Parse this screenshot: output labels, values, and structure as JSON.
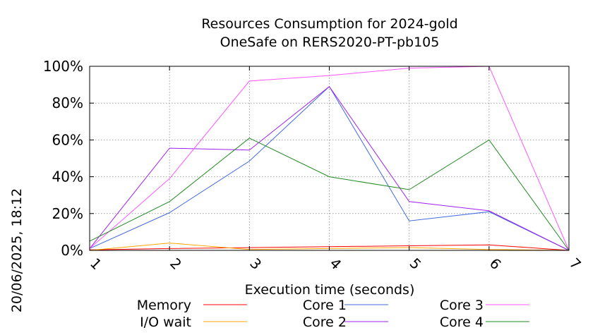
{
  "chart_data": {
    "type": "line",
    "title": [
      "Resources Consumption for 2024-gold",
      "OneSafe on RERS2020-PT-pb105"
    ],
    "xlabel": "Execution time (seconds)",
    "ylabel": "",
    "x": [
      1,
      2,
      3,
      4,
      5,
      6,
      7
    ],
    "xlim": [
      1,
      7
    ],
    "ylim": [
      0,
      100
    ],
    "x_ticks": [
      "1",
      "2",
      "3",
      "4",
      "5",
      "6",
      "7"
    ],
    "y_ticks": [
      {
        "value": 0,
        "label": "0%"
      },
      {
        "value": 20,
        "label": "20%"
      },
      {
        "value": 40,
        "label": "40%"
      },
      {
        "value": 60,
        "label": "60%"
      },
      {
        "value": 80,
        "label": "80%"
      },
      {
        "value": 100,
        "label": "100%"
      }
    ],
    "grid": true,
    "legend_position": "bottom",
    "timestamp": "20/06/2025, 18:12",
    "series": [
      {
        "name": "Memory",
        "color": "#ff0000",
        "values": [
          0.3,
          1,
          1.5,
          2,
          2.5,
          3,
          0
        ]
      },
      {
        "name": "I/O wait",
        "color": "#ffa500",
        "values": [
          0,
          4,
          0.5,
          1,
          1.5,
          0.5,
          0
        ]
      },
      {
        "name": "Core 1",
        "color": "#4169e1",
        "values": [
          1,
          20.5,
          48.5,
          89,
          16,
          21,
          0
        ]
      },
      {
        "name": "Core 2",
        "color": "#a020f0",
        "values": [
          1,
          55.5,
          54.5,
          89,
          26.5,
          21.5,
          0
        ]
      },
      {
        "name": "Core 3",
        "color": "#ff55ff",
        "values": [
          1,
          39,
          92,
          95,
          99,
          100,
          0
        ]
      },
      {
        "name": "Core 4",
        "color": "#228b22",
        "values": [
          5,
          26.5,
          61,
          40,
          33,
          60,
          0
        ]
      }
    ]
  }
}
